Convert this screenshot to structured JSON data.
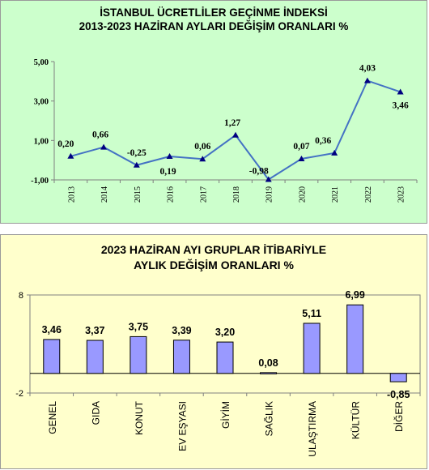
{
  "chart_data": [
    {
      "type": "line",
      "title_line1": "İSTANBUL ÜCRETLİLER GEÇİNME İNDEKSİ",
      "title_line2": "2013-2023 HAZİRAN AYLARI DEĞİŞİM ORANLARI %",
      "categories": [
        "2013",
        "2014",
        "2015",
        "2016",
        "2017",
        "2018",
        "2019",
        "2020",
        "2021",
        "2022",
        "2023"
      ],
      "values": [
        0.2,
        0.66,
        -0.25,
        0.19,
        0.06,
        1.27,
        -0.98,
        0.07,
        0.36,
        4.03,
        3.46
      ],
      "data_labels": [
        "0,20",
        "0,66",
        "-0,25",
        "0,19",
        "0,06",
        "1,27",
        "-0,98",
        "0,07",
        "0,36",
        "4,03",
        "3,46"
      ],
      "y_ticks": [
        "-1,00",
        "1,00",
        "3,00",
        "5,00"
      ],
      "ylim": [
        -1,
        5
      ],
      "line_color": "#4472c4",
      "background": "#ccffcc"
    },
    {
      "type": "bar",
      "title_line1": "2023 HAZİRAN  AYI  GRUPLAR İTİBARİYLE",
      "title_line2": "AYLIK DEĞİŞİM  ORANLARI  %",
      "categories": [
        "GENEL",
        "GIDA",
        "KONUT",
        "EV EŞYASI",
        "GİYİM",
        "SAĞLIK",
        "ULAŞTIRMA",
        "KÜLTÜR",
        "DİĞER"
      ],
      "values": [
        3.46,
        3.37,
        3.75,
        3.39,
        3.2,
        0.08,
        5.11,
        6.99,
        -0.85
      ],
      "data_labels": [
        "3,46",
        "3,37",
        "3,75",
        "3,39",
        "3,20",
        "0,08",
        "5,11",
        "6,99",
        "-0,85"
      ],
      "y_ticks": [
        "-2",
        "8"
      ],
      "ylim": [
        -2,
        8
      ],
      "bar_color": "#9999ff",
      "background": "#ffffcc"
    }
  ]
}
